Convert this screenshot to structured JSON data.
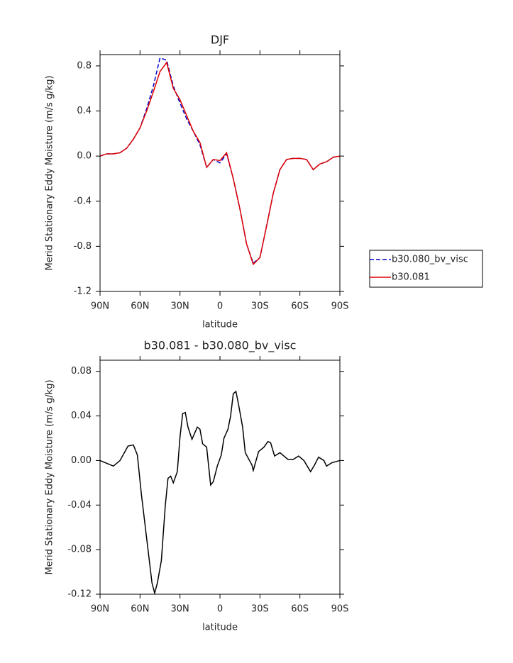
{
  "chart_data": [
    {
      "type": "line",
      "title": "DJF",
      "x_label": "latitude",
      "y_label": "Merid Stationary Eddy Moisture (m/s g/kg)",
      "x": [
        90,
        85,
        80,
        75,
        70,
        65,
        60,
        55,
        50,
        45,
        40,
        35,
        30,
        25,
        20,
        15,
        10,
        5,
        0,
        -5,
        -10,
        -15,
        -20,
        -25,
        -30,
        -35,
        -40,
        -45,
        -50,
        -55,
        -60,
        -65,
        -70,
        -75,
        -80,
        -85,
        -90
      ],
      "series": [
        {
          "name": "b30.080_bv_visc",
          "color": "#0000cc",
          "line_style": "dashed",
          "values": [
            0.0,
            0.02,
            0.02,
            0.03,
            0.07,
            0.15,
            0.25,
            0.42,
            0.62,
            0.87,
            0.85,
            0.62,
            0.47,
            0.33,
            0.22,
            0.1,
            -0.1,
            -0.03,
            -0.06,
            0.02,
            -0.2,
            -0.47,
            -0.78,
            -0.95,
            -0.9,
            -0.62,
            -0.33,
            -0.12,
            -0.03,
            -0.02,
            -0.02,
            -0.03,
            -0.12,
            -0.07,
            -0.05,
            -0.01,
            0.0
          ]
        },
        {
          "name": "b30.081",
          "color": "#e00000",
          "line_style": "solid",
          "values": [
            0.0,
            0.02,
            0.02,
            0.03,
            0.07,
            0.15,
            0.25,
            0.4,
            0.57,
            0.75,
            0.83,
            0.6,
            0.5,
            0.36,
            0.22,
            0.12,
            -0.1,
            -0.03,
            -0.04,
            0.03,
            -0.2,
            -0.47,
            -0.78,
            -0.96,
            -0.9,
            -0.62,
            -0.33,
            -0.12,
            -0.03,
            -0.02,
            -0.02,
            -0.03,
            -0.12,
            -0.07,
            -0.05,
            -0.01,
            0.0
          ]
        }
      ],
      "xlim": [
        90,
        -90
      ],
      "xticks": [
        {
          "value": 90,
          "label": "90N"
        },
        {
          "value": 60,
          "label": "60N"
        },
        {
          "value": 30,
          "label": "30N"
        },
        0,
        {
          "value": -30,
          "label": "30S"
        },
        {
          "value": -60,
          "label": "60S"
        },
        {
          "value": -90,
          "label": "90S"
        }
      ],
      "ylim": [
        -1.2,
        0.9
      ],
      "yticks": [
        -1.2,
        -0.8,
        -0.4,
        {
          "value": 0,
          "label": "0.0"
        },
        0.4,
        0.8
      ],
      "legend": "right"
    },
    {
      "type": "line",
      "title": "b30.081 - b30.080_bv_visc",
      "x_label": "latitude",
      "y_label": "Merid Stationary Eddy Moisture (m/s g/kg)",
      "x": [
        90,
        80,
        75,
        69,
        65,
        62,
        59,
        55,
        51,
        49,
        47,
        44,
        41,
        39,
        37,
        35,
        32,
        30,
        28,
        26,
        24,
        21,
        17,
        15,
        13,
        10,
        7,
        5,
        2,
        -1,
        -3,
        -6,
        -8,
        -10,
        -12,
        -14,
        -17,
        -19,
        -24,
        -25,
        -29,
        -33,
        -36,
        -38,
        -41,
        -45,
        -51,
        -55,
        -59,
        -63,
        -68,
        -71,
        -74,
        -78,
        -80,
        -84,
        -90
      ],
      "values": [
        0.0,
        -0.005,
        0.0,
        0.013,
        0.014,
        0.005,
        -0.03,
        -0.07,
        -0.11,
        -0.119,
        -0.11,
        -0.09,
        -0.04,
        -0.016,
        -0.014,
        -0.02,
        -0.01,
        0.021,
        0.042,
        0.043,
        0.03,
        0.019,
        0.03,
        0.028,
        0.015,
        0.012,
        -0.022,
        -0.019,
        -0.005,
        0.005,
        0.02,
        0.028,
        0.04,
        0.06,
        0.062,
        0.05,
        0.03,
        0.007,
        -0.004,
        -0.009,
        0.008,
        0.012,
        0.017,
        0.016,
        0.004,
        0.007,
        0.001,
        0.001,
        0.004,
        0.0,
        -0.01,
        -0.004,
        0.003,
        0.0,
        -0.005,
        -0.002,
        0.0
      ],
      "color": "#000000",
      "xlim": [
        90,
        -90
      ],
      "xticks": [
        {
          "value": 90,
          "label": "90N"
        },
        {
          "value": 60,
          "label": "60N"
        },
        {
          "value": 30,
          "label": "30N"
        },
        0,
        {
          "value": -30,
          "label": "30S"
        },
        {
          "value": -60,
          "label": "60S"
        },
        {
          "value": -90,
          "label": "90S"
        }
      ],
      "ylim": [
        -0.12,
        0.09
      ],
      "yticks": [
        -0.12,
        -0.08,
        -0.04,
        {
          "value": 0,
          "label": "0.00"
        },
        0.04,
        0.08
      ]
    }
  ]
}
